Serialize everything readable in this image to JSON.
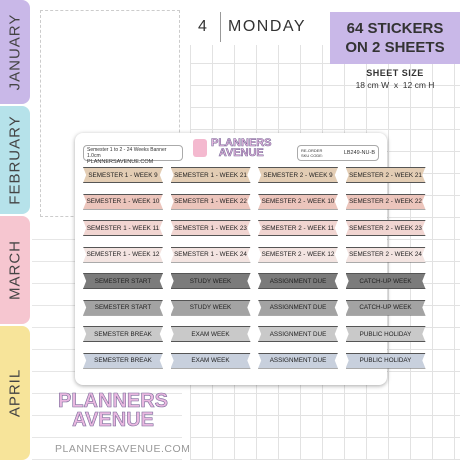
{
  "tabs": [
    "JANUARY",
    "FEBRUARY",
    "MARCH",
    "APRIL"
  ],
  "planner": {
    "day_number": "4",
    "day_name": "MONDAY"
  },
  "promo": {
    "title": "64 STICKERS ON 2 SHEETS",
    "size_label": "SHEET SIZE",
    "size_value": "18 cm W  x  12 cm H"
  },
  "sheet": {
    "product_name": "Semester 1 to 2 - 24 Weeks Banner 1.0cm",
    "website": "PLANNERSAVENUE.COM",
    "logo": {
      "line1": "PLANNERS",
      "line2": "AVENUE"
    },
    "reorder_label": "RE-ORDER SKU CODE:",
    "sku": "LB249-NU-B",
    "stickers": [
      [
        "SEMESTER 1 - WEEK 9",
        "SEMESTER 1 - WEEK 21",
        "SEMESTER 2 - WEEK 9",
        "SEMESTER 2 - WEEK 21"
      ],
      [
        "SEMESTER 1 - WEEK 10",
        "SEMESTER 1 - WEEK 22",
        "SEMESTER 2 - WEEK 10",
        "SEMESTER 2 - WEEK 22"
      ],
      [
        "SEMESTER 1 - WEEK 11",
        "SEMESTER 1 - WEEK 23",
        "SEMESTER 2 - WEEK 11",
        "SEMESTER 2 - WEEK 23"
      ],
      [
        "SEMESTER 1 - WEEK 12",
        "SEMESTER 1 - WEEK 24",
        "SEMESTER 2 - WEEK 12",
        "SEMESTER 2 - WEEK 24"
      ],
      [
        "SEMESTER START",
        "STUDY WEEK",
        "ASSIGNMENT DUE",
        "CATCH-UP WEEK"
      ],
      [
        "SEMESTER START",
        "STUDY WEEK",
        "ASSIGNMENT DUE",
        "CATCH-UP WEEK"
      ],
      [
        "SEMESTER BREAK",
        "EXAM WEEK",
        "ASSIGNMENT DUE",
        "PUBLIC HOLIDAY"
      ],
      [
        "SEMESTER BREAK",
        "EXAM WEEK",
        "ASSIGNMENT DUE",
        "PUBLIC HOLIDAY"
      ]
    ]
  },
  "footer": {
    "logo": {
      "line1": "PLANNERS",
      "line2": "AVENUE"
    },
    "website": "PLANNERSAVENUE.COM"
  }
}
